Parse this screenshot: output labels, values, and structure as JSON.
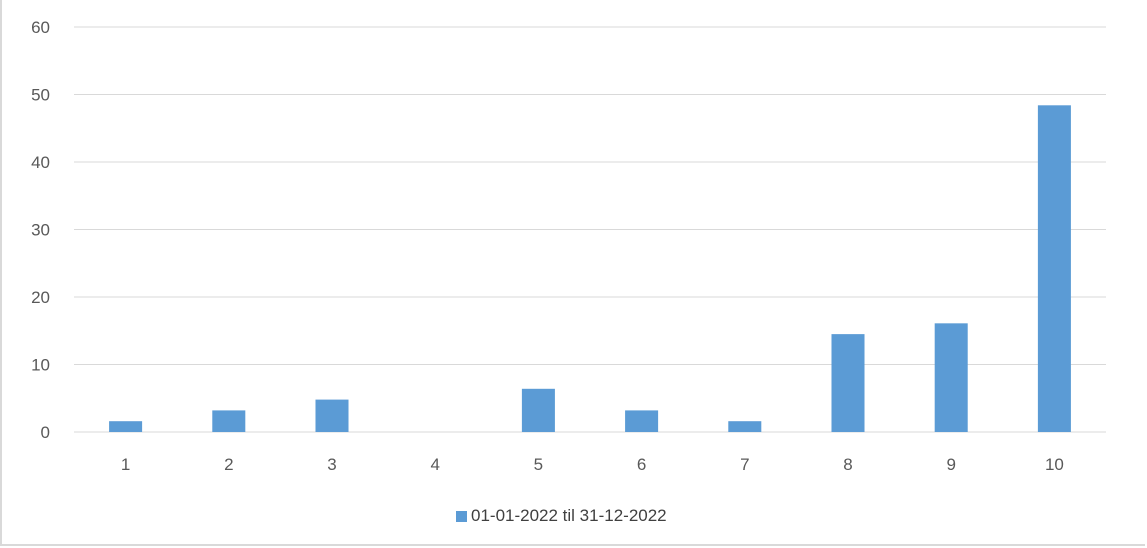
{
  "chart_data": {
    "type": "bar",
    "categories": [
      "1",
      "2",
      "3",
      "4",
      "5",
      "6",
      "7",
      "8",
      "9",
      "10"
    ],
    "series": [
      {
        "name": "01-01-2022 til 31-12-2022",
        "values": [
          1.6,
          3.2,
          4.8,
          0,
          6.4,
          3.2,
          1.6,
          14.5,
          16.1,
          48.4
        ],
        "color": "#5b9bd5"
      }
    ],
    "title": "",
    "xlabel": "",
    "ylabel": "",
    "ylim": [
      0,
      60
    ],
    "yticks": [
      "0",
      "10",
      "20",
      "30",
      "40",
      "50",
      "60"
    ],
    "grid": true,
    "legend_position": "bottom"
  }
}
